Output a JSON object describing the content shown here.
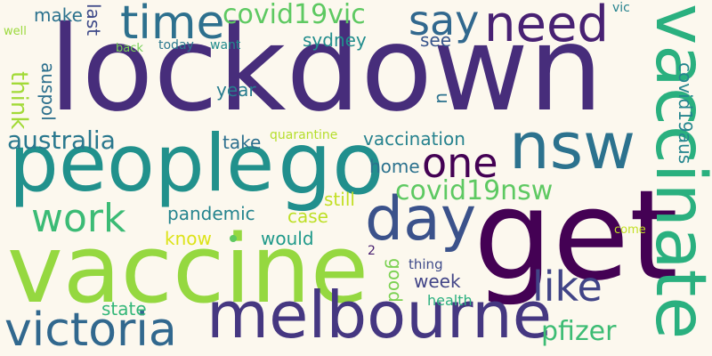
{
  "words": {
    "lockdown": {
      "text": "lockdown",
      "color": "#472d7b"
    },
    "get": {
      "text": "get",
      "color": "#440154"
    },
    "vaccine": {
      "text": "vaccine",
      "color": "#95d840"
    },
    "people": {
      "text": "people",
      "color": "#21918c"
    },
    "vaccinate": {
      "text": "vaccinate",
      "color": "#2ab07f"
    },
    "melbourne": {
      "text": "melbourne",
      "color": "#453781"
    },
    "go": {
      "text": "go",
      "color": "#218f8d"
    },
    "nsw": {
      "text": "nsw",
      "color": "#2c728e"
    },
    "day": {
      "text": "day",
      "color": "#3b528b"
    },
    "need": {
      "text": "need",
      "color": "#482173"
    },
    "time": {
      "text": "time",
      "color": "#2d708e"
    },
    "victoria": {
      "text": "victoria",
      "color": "#31688e"
    },
    "like": {
      "text": "like",
      "color": "#414487"
    },
    "one": {
      "text": "one",
      "color": "#440154"
    },
    "say": {
      "text": "say",
      "color": "#31688e"
    },
    "work": {
      "text": "work",
      "color": "#3bbb75"
    },
    "covid19vic": {
      "text": "covid19vic",
      "color": "#5ec962"
    },
    "covid19nsw": {
      "text": "covid19nsw",
      "color": "#5ec962"
    },
    "australia": {
      "text": "australia",
      "color": "#2a788e"
    },
    "pfizer": {
      "text": "pfizer",
      "color": "#3dbc74"
    },
    "make": {
      "text": "make",
      "color": "#2c728e"
    },
    "last": {
      "text": "last",
      "color": "#3e4a89"
    },
    "think": {
      "text": "think",
      "color": "#a2da37"
    },
    "auspol": {
      "text": "auspol",
      "color": "#2d708e"
    },
    "sydney": {
      "text": "sydney",
      "color": "#228d8d"
    },
    "see": {
      "text": "see",
      "color": "#39568c"
    },
    "year": {
      "text": "year",
      "color": "#287d8e"
    },
    "u": {
      "text": "u",
      "color": "#2c728e"
    },
    "take": {
      "text": "take",
      "color": "#2d708e"
    },
    "vaccination": {
      "text": "vaccination",
      "color": "#26828e"
    },
    "home": {
      "text": "home",
      "color": "#2c728e"
    },
    "covid19aus": {
      "text": "covid19aus",
      "color": "#25858e"
    },
    "pandemic": {
      "text": "pandemic",
      "color": "#25848e"
    },
    "case": {
      "text": "case",
      "color": "#bddf26"
    },
    "would": {
      "text": "would",
      "color": "#1f998a"
    },
    "know": {
      "text": "know",
      "color": "#dde318"
    },
    "still": {
      "text": "still",
      "color": "#c2df23"
    },
    "good": {
      "text": "good",
      "color": "#7ad151"
    },
    "week": {
      "text": "week",
      "color": "#414487"
    },
    "state": {
      "text": "state",
      "color": "#35b779"
    },
    "health": {
      "text": "health",
      "color": "#2ab07f"
    },
    "thing": {
      "text": "thing",
      "color": "#3e4a89"
    },
    "come": {
      "text": "come",
      "color": "#c2df23"
    },
    "two": {
      "text": "2",
      "color": "#481f70"
    },
    "quarantine": {
      "text": "quarantine",
      "color": "#b5de2b"
    },
    "well": {
      "text": "well",
      "color": "#9bd93c"
    },
    "back": {
      "text": "back",
      "color": "#75d054"
    },
    "today": {
      "text": "today",
      "color": "#2a788e"
    },
    "want": {
      "text": "want",
      "color": "#228c8d"
    },
    "vic": {
      "text": "vic",
      "color": "#26828e"
    }
  },
  "dot_color": "#5ec962"
}
